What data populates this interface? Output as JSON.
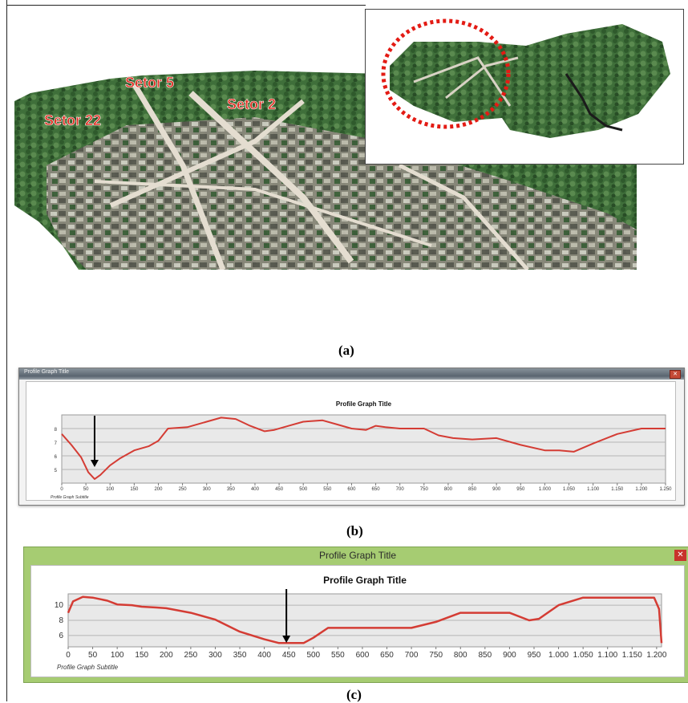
{
  "panel_a": {
    "sector_labels": [
      "Setor 22",
      "Setor 5",
      "Setor 2"
    ],
    "caption": "(a)"
  },
  "panel_b": {
    "window_title": "Profile Graph Title",
    "graph_title": "Profile Graph Title",
    "subtitle": "Profile Graph Subtitle",
    "caption": "(b)",
    "chart_data": {
      "type": "line",
      "title": "Profile Graph Title",
      "xlim": [
        0,
        1250
      ],
      "ylim": [
        4,
        9
      ],
      "xticks": [
        0,
        50,
        100,
        150,
        200,
        250,
        300,
        350,
        400,
        450,
        500,
        550,
        600,
        650,
        700,
        750,
        800,
        850,
        900,
        950,
        1000,
        1050,
        1100,
        1150,
        1200,
        1250
      ],
      "xtick_labels": [
        "0",
        "50",
        "100",
        "150",
        "200",
        "250",
        "300",
        "350",
        "400",
        "450",
        "500",
        "550",
        "600",
        "650",
        "700",
        "750",
        "800",
        "850",
        "900",
        "950",
        "1.000",
        "1.050",
        "1.100",
        "1.150",
        "1.200",
        "1.250"
      ],
      "yticks": [
        5,
        6,
        7,
        8
      ],
      "grid": true,
      "line_color": "#d43c34",
      "x": [
        0,
        20,
        40,
        55,
        68,
        80,
        100,
        120,
        150,
        180,
        200,
        220,
        260,
        300,
        330,
        360,
        390,
        420,
        440,
        470,
        500,
        540,
        570,
        600,
        630,
        650,
        670,
        700,
        750,
        780,
        810,
        850,
        900,
        930,
        950,
        1000,
        1030,
        1060,
        1100,
        1150,
        1200,
        1250
      ],
      "y": [
        7.6,
        6.8,
        5.9,
        4.8,
        4.3,
        4.6,
        5.3,
        5.8,
        6.4,
        6.7,
        7.1,
        8.0,
        8.1,
        8.5,
        8.8,
        8.7,
        8.2,
        7.8,
        7.9,
        8.2,
        8.5,
        8.6,
        8.3,
        8.0,
        7.9,
        8.2,
        8.1,
        8.0,
        8.0,
        7.5,
        7.3,
        7.2,
        7.3,
        7.0,
        6.8,
        6.4,
        6.4,
        6.3,
        6.9,
        7.6,
        8.0,
        8.0
      ],
      "annotation": "downward arrow at x≈68"
    }
  },
  "panel_c": {
    "window_title": "Profile Graph Title",
    "graph_title": "Profile Graph Title",
    "subtitle": "Profile Graph Subtitle",
    "caption": "(c)",
    "chart_data": {
      "type": "line",
      "title": "Profile Graph Title",
      "xlim": [
        0,
        1210
      ],
      "ylim": [
        4.5,
        11.5
      ],
      "xticks": [
        0,
        50,
        100,
        150,
        200,
        250,
        300,
        350,
        400,
        450,
        500,
        550,
        600,
        650,
        700,
        750,
        800,
        850,
        900,
        950,
        1000,
        1050,
        1100,
        1150,
        1200
      ],
      "xtick_labels": [
        "0",
        "50",
        "100",
        "150",
        "200",
        "250",
        "300",
        "350",
        "400",
        "450",
        "500",
        "550",
        "600",
        "650",
        "700",
        "750",
        "800",
        "850",
        "900",
        "950",
        "1.000",
        "1.050",
        "1.100",
        "1.150",
        "1.200"
      ],
      "yticks": [
        6,
        8,
        10
      ],
      "grid": true,
      "line_color": "#d43c34",
      "x": [
        0,
        10,
        30,
        50,
        80,
        100,
        130,
        150,
        180,
        200,
        250,
        300,
        350,
        400,
        430,
        480,
        500,
        530,
        560,
        600,
        650,
        700,
        750,
        800,
        850,
        900,
        940,
        960,
        1000,
        1050,
        1100,
        1150,
        1195,
        1205,
        1210
      ],
      "y": [
        9.0,
        10.5,
        11.1,
        11.0,
        10.6,
        10.1,
        10.0,
        9.8,
        9.7,
        9.6,
        9.0,
        8.1,
        6.5,
        5.5,
        5.0,
        5.0,
        5.7,
        7.0,
        7.0,
        7.0,
        7.0,
        7.0,
        7.8,
        9.0,
        9.0,
        9.0,
        8.0,
        8.2,
        10.0,
        11.0,
        11.0,
        11.0,
        11.0,
        9.5,
        5.0
      ],
      "annotation": "downward arrow at x≈445"
    }
  }
}
